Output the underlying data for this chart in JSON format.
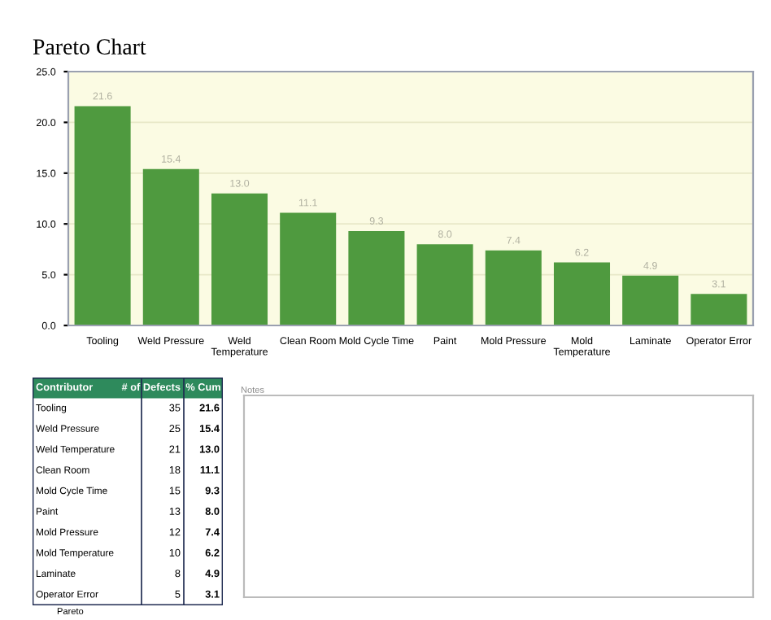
{
  "chart_data": [
    {
      "type": "bar",
      "title": "Pareto Chart",
      "categories": [
        "Tooling",
        "Weld Pressure",
        "Weld\nTemperature",
        "Clean Room",
        "Mold Cycle Time",
        "Paint",
        "Mold Pressure",
        "Mold\nTemperature",
        "Laminate",
        "Operator Error"
      ],
      "values": [
        21.6,
        15.4,
        13.0,
        11.1,
        9.3,
        8.0,
        7.4,
        6.2,
        4.9,
        3.1
      ],
      "value_labels": [
        "21.6",
        "15.4",
        "13.0",
        "11.1",
        "9.3",
        "8.0",
        "7.4",
        "6.2",
        "4.9",
        "3.1"
      ],
      "color": "#4f9a3f",
      "ylim": [
        0,
        25
      ],
      "yticks": [
        {
          "value": 0,
          "label": "0.0"
        },
        {
          "value": 5,
          "label": "5.0"
        },
        {
          "value": 10,
          "label": "10.0"
        },
        {
          "value": 15,
          "label": "15.0"
        },
        {
          "value": 20,
          "label": "20.0"
        },
        {
          "value": 25,
          "label": "25.0"
        }
      ],
      "grid": "y",
      "legend": false
    },
    {
      "type": "other",
      "xlabel": "Contributor",
      "categories": [
        "Tooling",
        "Weld Pressure",
        "Weld Temperature",
        "Clean Room",
        "Mold Cycle Time",
        "Paint",
        "Mold Pressure",
        "Mold Temperature",
        "Laminate",
        "Operator Error"
      ],
      "series": [
        {
          "name": "# of Defects",
          "values": [
            35,
            25,
            21,
            18,
            15,
            13,
            12,
            10,
            8,
            5
          ]
        },
        {
          "name": "% Cum",
          "values": [
            21.6,
            15.4,
            13.0,
            11.1,
            9.3,
            8.0,
            7.4,
            6.2,
            4.9,
            3.1
          ],
          "value_labels": [
            "21.6",
            "15.4",
            "13.0",
            "11.1",
            "9.3",
            "8.0",
            "7.4",
            "6.2",
            "4.9",
            "3.1"
          ]
        }
      ],
      "data_labels": true,
      "annotations": [
        "Notes",
        "Pareto"
      ]
    }
  ]
}
